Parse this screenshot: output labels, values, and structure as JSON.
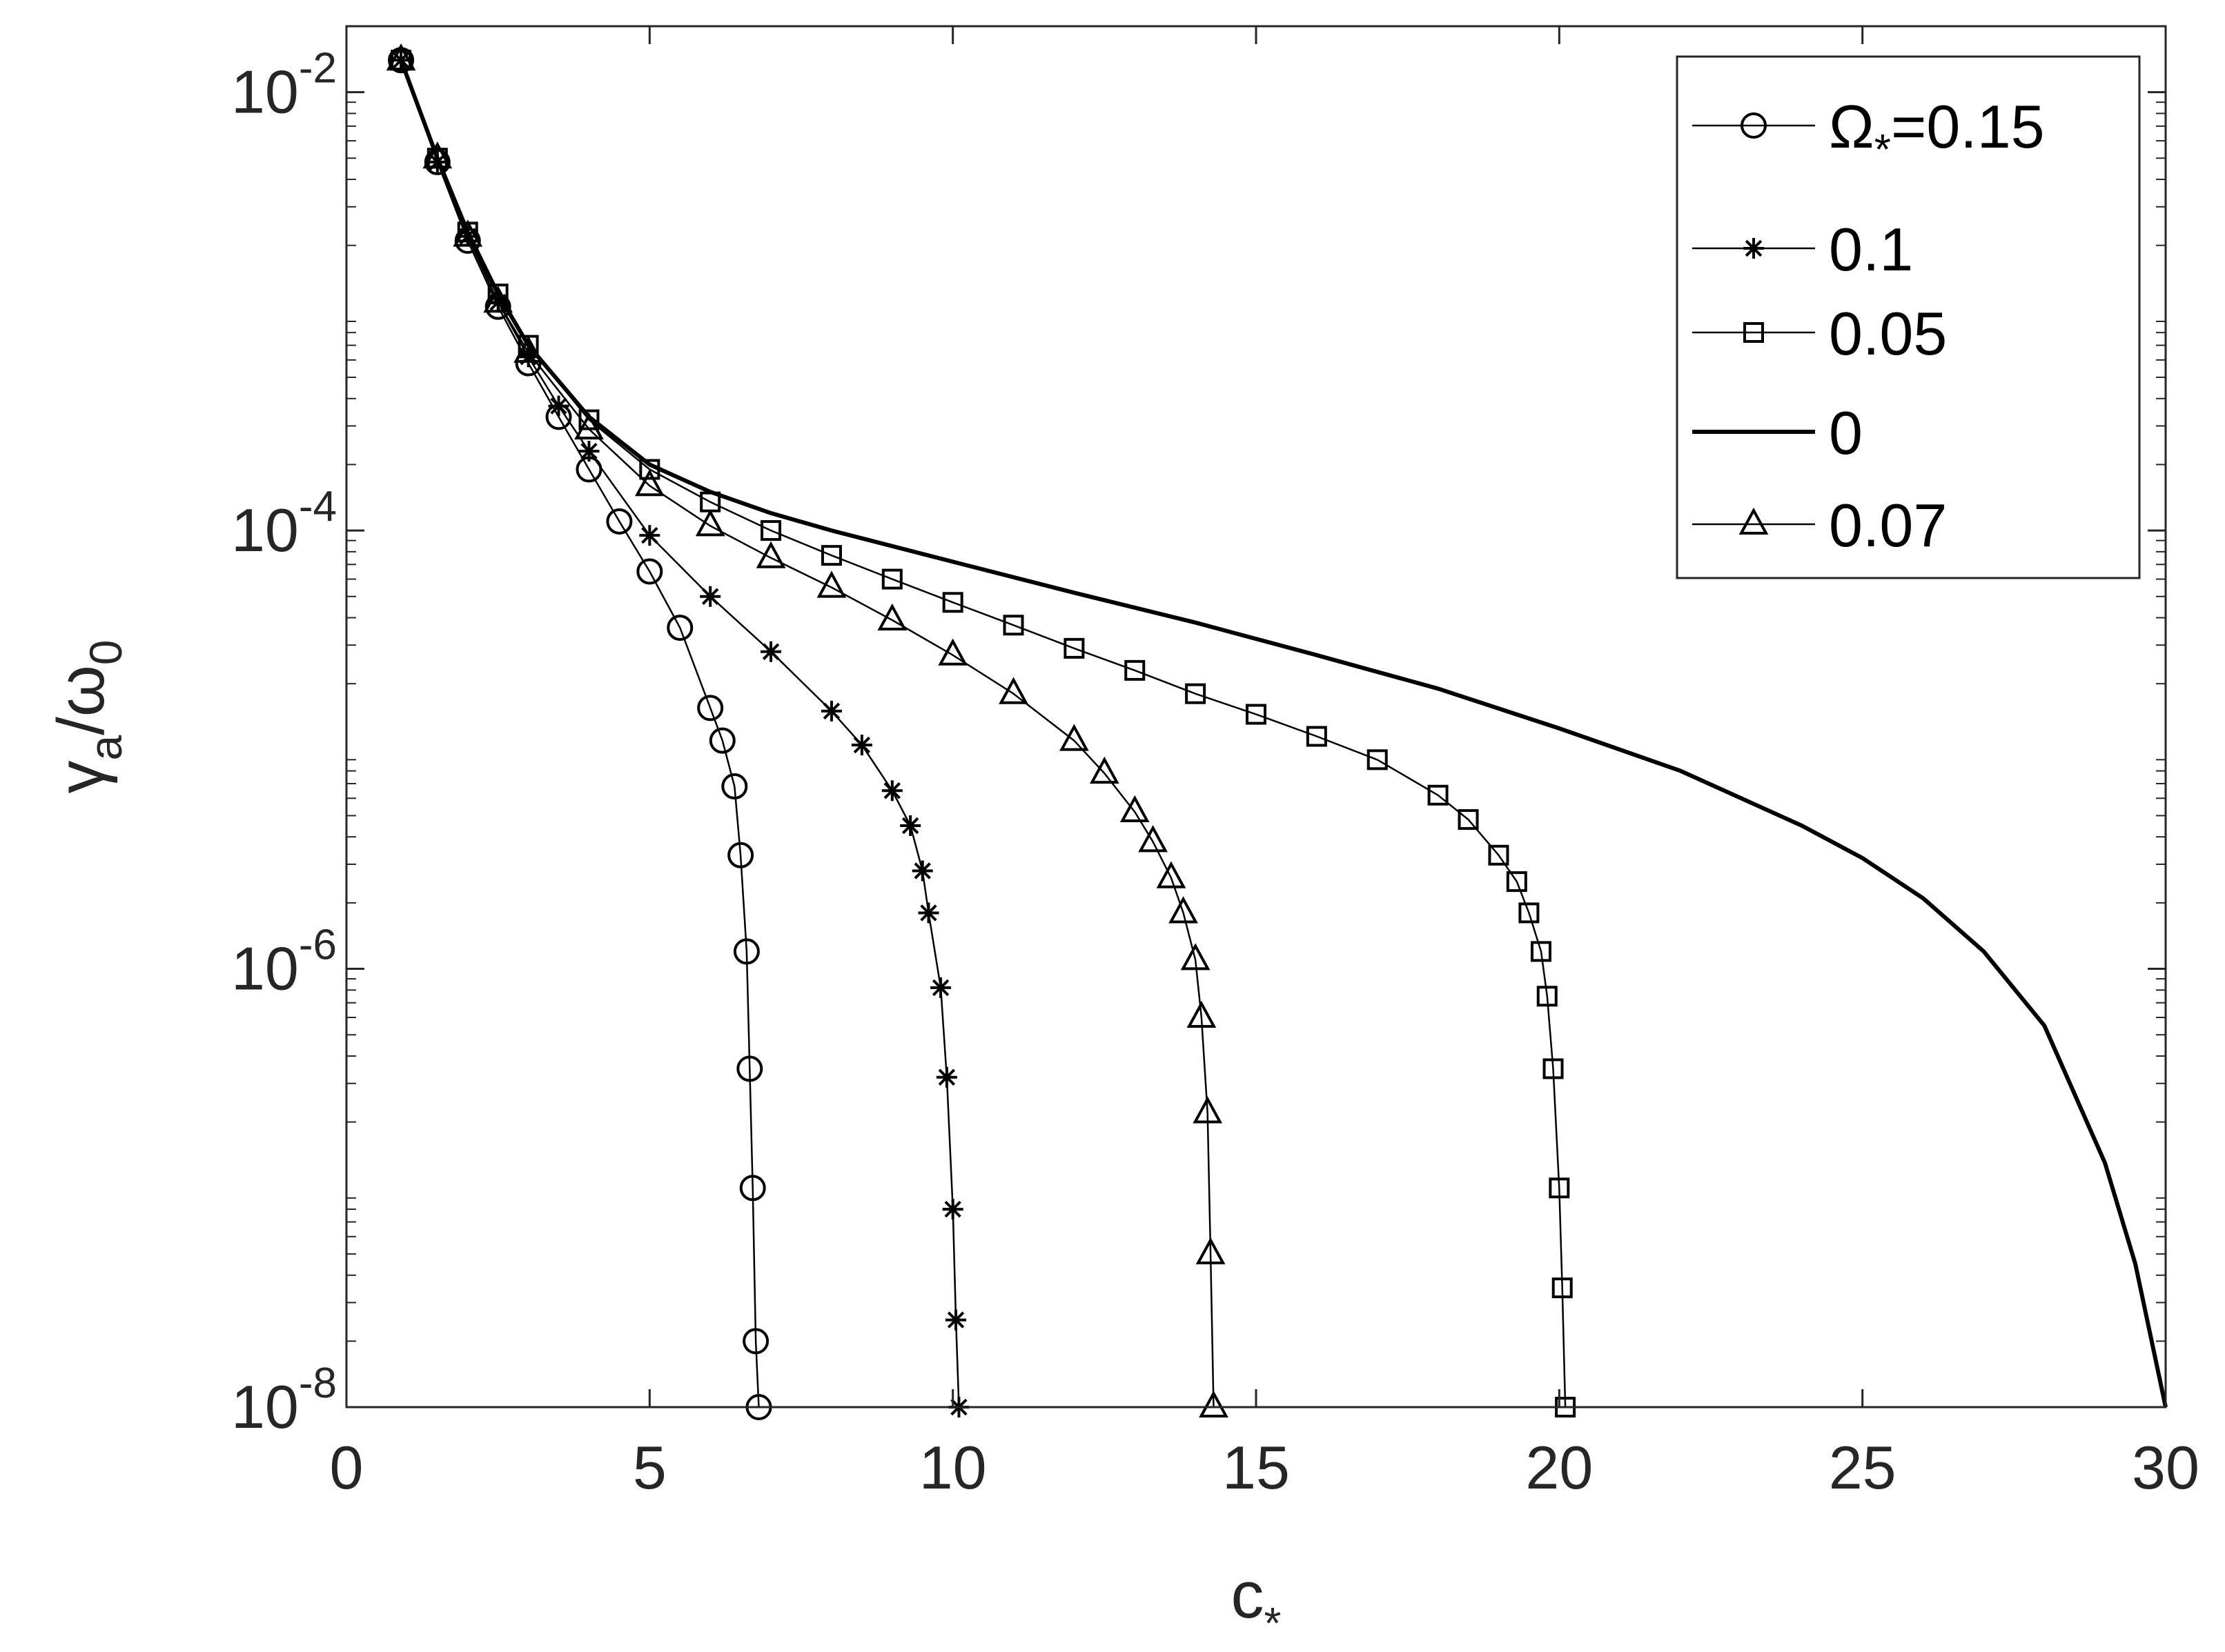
{
  "chart_data": {
    "type": "line",
    "title": "",
    "xlabel": "c_*",
    "ylabel": "γ_a/ω_0",
    "xscale": "linear",
    "yscale": "log",
    "xlim": [
      0,
      30
    ],
    "ylim": [
      1e-08,
      0.02
    ],
    "xticks": [
      0,
      5,
      10,
      15,
      20,
      25,
      30
    ],
    "xtick_labels": [
      "0",
      "5",
      "10",
      "15",
      "20",
      "25",
      "30"
    ],
    "yticks": [
      1e-08,
      1e-06,
      0.0001,
      0.01
    ],
    "ytick_labels": [
      {
        "base": "10",
        "exp": "-8"
      },
      {
        "base": "10",
        "exp": "-6"
      },
      {
        "base": "10",
        "exp": "-4"
      },
      {
        "base": "10",
        "exp": "-2"
      }
    ],
    "grid": false,
    "box": true,
    "legend_position": "top-right",
    "series": [
      {
        "name": "Ω*=0.15",
        "legend_label": "Ω",
        "legend_sub": "*",
        "legend_suffix": "=0.15",
        "marker": "circle",
        "x": [
          0.9,
          1.5,
          2,
          2.5,
          3,
          3.5,
          4,
          4.5,
          5,
          5.5,
          6,
          6.2,
          6.4,
          6.5,
          6.6,
          6.65,
          6.7,
          6.75,
          6.8
        ],
        "y": [
          0.014,
          0.0048,
          0.0021,
          0.00105,
          0.00058,
          0.00033,
          0.00019,
          0.00011,
          6.5e-05,
          3.6e-05,
          1.55e-05,
          1.1e-05,
          6.8e-06,
          3.3e-06,
          1.2e-06,
          3.5e-07,
          1e-07,
          2e-08,
          1e-08
        ]
      },
      {
        "name": "0.1",
        "legend_label": "0.1",
        "marker": "asterisk",
        "x": [
          0.9,
          1.5,
          2,
          2.5,
          3,
          3.5,
          4,
          5,
          6,
          7,
          8,
          8.5,
          9,
          9.3,
          9.5,
          9.6,
          9.8,
          9.9,
          10,
          10.05,
          10.1
        ],
        "y": [
          0.014,
          0.0048,
          0.0022,
          0.0011,
          0.00062,
          0.00037,
          0.00023,
          9.5e-05,
          5e-05,
          2.8e-05,
          1.5e-05,
          1.05e-05,
          6.5e-06,
          4.5e-06,
          2.8e-06,
          1.8e-06,
          8.2e-07,
          3.2e-07,
          8e-08,
          2.5e-08,
          1e-08
        ]
      },
      {
        "name": "0.05",
        "legend_label": "0.05",
        "marker": "square",
        "x": [
          0.9,
          1.5,
          2,
          2.5,
          3,
          4,
          5,
          6,
          7,
          8,
          9,
          10,
          11,
          12,
          13,
          14,
          15,
          16,
          17,
          18,
          18.5,
          19,
          19.3,
          19.5,
          19.7,
          19.8,
          19.9,
          20,
          20.05,
          20.1
        ],
        "y": [
          0.014,
          0.005,
          0.0023,
          0.0012,
          0.0007,
          0.00032,
          0.00019,
          0.000135,
          0.0001,
          7.7e-05,
          6e-05,
          4.7e-05,
          3.7e-05,
          2.9e-05,
          2.3e-05,
          1.8e-05,
          1.45e-05,
          1.15e-05,
          9e-06,
          6.2e-06,
          4.8e-06,
          3.3e-06,
          2.5e-06,
          1.8e-06,
          1.2e-06,
          7.5e-07,
          3.5e-07,
          1e-07,
          3.5e-08,
          1e-08
        ]
      },
      {
        "name": "0",
        "legend_label": "0",
        "marker": "none",
        "x": [
          0.9,
          1.5,
          2,
          2.5,
          3,
          4,
          5,
          6,
          7,
          8,
          10,
          12,
          14,
          16,
          18,
          20,
          22,
          24,
          25,
          26,
          27,
          28,
          29,
          29.5,
          30
        ],
        "y": [
          0.014,
          0.005,
          0.0023,
          0.0012,
          0.0007,
          0.00033,
          0.0002,
          0.00015,
          0.00012,
          0.0001,
          7.2e-05,
          5.2e-05,
          3.8e-05,
          2.7e-05,
          1.9e-05,
          1.25e-05,
          8e-06,
          4.5e-06,
          3.2e-06,
          2.1e-06,
          1.2e-06,
          5.5e-07,
          1.3e-07,
          4.5e-08,
          1e-08
        ]
      },
      {
        "name": "0.07",
        "legend_label": "0.07",
        "marker": "triangle",
        "x": [
          0.9,
          1.5,
          2,
          2.5,
          3,
          4,
          5,
          6,
          7,
          8,
          9,
          10,
          11,
          12,
          12.5,
          13,
          13.3,
          13.6,
          13.8,
          14,
          14.1,
          14.2,
          14.25,
          14.3
        ],
        "y": [
          0.014,
          0.005,
          0.0022,
          0.0011,
          0.00065,
          0.00029,
          0.00016,
          0.000105,
          7.5e-05,
          5.5e-05,
          3.9e-05,
          2.7e-05,
          1.8e-05,
          1.1e-05,
          7.8e-06,
          5.2e-06,
          3.8e-06,
          2.6e-06,
          1.8e-06,
          1.1e-06,
          6e-07,
          2.2e-07,
          5e-08,
          1e-08
        ]
      }
    ]
  }
}
